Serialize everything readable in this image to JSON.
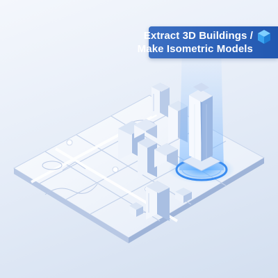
{
  "banner": {
    "line1": "Extract 3D Buildings /",
    "line2": "Make Isometric Models",
    "icon": "cube-icon"
  },
  "colors": {
    "banner_bg": "#2d64be",
    "accent": "#3a8cf0",
    "base_plate": "#f3f6fc",
    "building_light": "#eef3fb",
    "building_mid": "#c3d3ec",
    "building_dark": "#9fb6dc"
  }
}
